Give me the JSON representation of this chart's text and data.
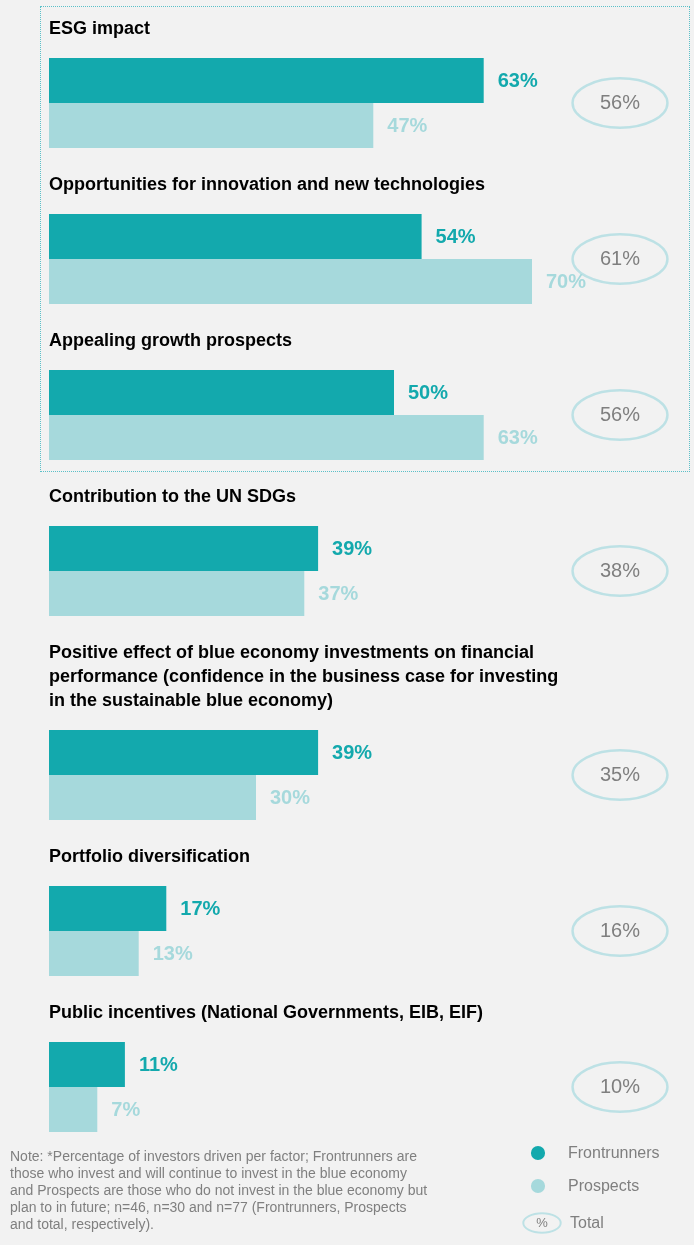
{
  "chart_data": {
    "type": "bar",
    "orientation": "horizontal",
    "legend": "bottom right",
    "categories": [
      "ESG impact",
      "Opportunities for innovation and new technologies",
      "Appealing growth prospects",
      "Contribution to the UN SDGs",
      "Positive effect of blue economy investments on financial performance (confidence in the business case for investing in the sustainable blue economy)",
      "Portfolio diversification",
      "Public incentives (National Governments, EIB, EIF)"
    ],
    "series": [
      {
        "name": "Frontrunners",
        "color": "#13a9ad",
        "values": [
          63,
          54,
          50,
          39,
          39,
          17,
          11
        ],
        "value_labels": [
          "63%",
          "54%",
          "50%",
          "39%",
          "39%",
          "17%",
          "11%"
        ]
      },
      {
        "name": "Prospects",
        "color": "#a6d9dc",
        "values": [
          47,
          70,
          63,
          37,
          30,
          13,
          7
        ],
        "value_labels": [
          "47%",
          "70%",
          "63%",
          "37%",
          "30%",
          "13%",
          "7%"
        ]
      }
    ],
    "annotations": [
      "56%",
      "61%",
      "56%",
      "38%",
      "35%",
      "16%",
      "10%",
      "%",
      "Total",
      "Note: *Percentage of investors driven per factor; Frontrunners are those who invest and will continue to invest in the blue economy and Prospects are those who do not invest in the blue economy but plan to in future; n=46, n=30 and n=77 (Frontrunners, Prospects and total, respectively)."
    ]
  }
}
